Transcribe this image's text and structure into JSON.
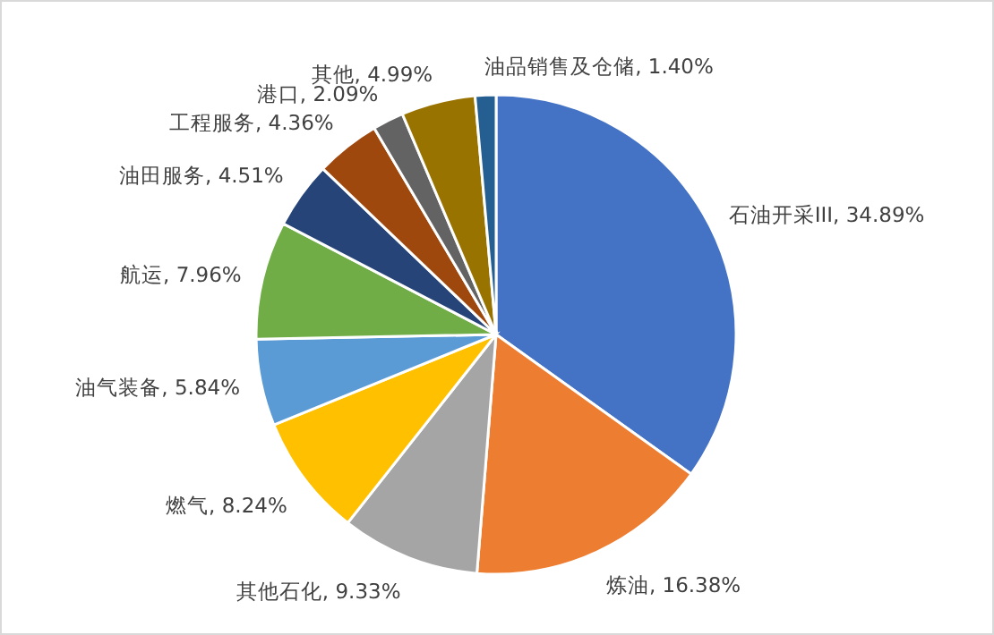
{
  "chart_data": {
    "type": "pie",
    "categories": [
      "石油开采III",
      "炼油",
      "其他石化",
      "燃气",
      "油气装备",
      "航运",
      "油田服务",
      "工程服务",
      "港口",
      "其他",
      "油品销售及仓储"
    ],
    "values": [
      34.89,
      16.38,
      9.33,
      8.24,
      5.84,
      7.96,
      4.51,
      4.36,
      2.09,
      4.99,
      1.4
    ],
    "value_labels": [
      "34.89%",
      "16.38%",
      "9.33%",
      "8.24%",
      "5.84%",
      "7.96%",
      "4.51%",
      "4.36%",
      "2.09%",
      "4.99%",
      "1.40%"
    ],
    "colors": [
      "#4472c4",
      "#ed7d31",
      "#a5a5a5",
      "#ffc000",
      "#5b9bd5",
      "#70ad47",
      "#264478",
      "#9e480e",
      "#636363",
      "#997300",
      "#255e91"
    ],
    "legend": false
  }
}
